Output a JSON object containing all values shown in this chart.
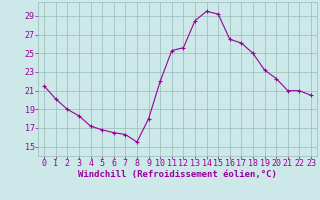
{
  "x": [
    0,
    1,
    2,
    3,
    4,
    5,
    6,
    7,
    8,
    9,
    10,
    11,
    12,
    13,
    14,
    15,
    16,
    17,
    18,
    19,
    20,
    21,
    22,
    23
  ],
  "y": [
    21.5,
    20.1,
    19.0,
    18.3,
    17.2,
    16.8,
    16.5,
    16.3,
    15.5,
    18.0,
    22.0,
    25.3,
    25.6,
    28.5,
    29.5,
    29.2,
    26.5,
    26.1,
    25.0,
    23.2,
    22.3,
    21.0,
    21.0,
    20.5
  ],
  "line_color": "#990099",
  "marker": "+",
  "marker_size": 3,
  "marker_lw": 0.8,
  "line_width": 0.8,
  "bg_color": "#cce8e8",
  "grid_color": "#99bbbb",
  "xlabel": "Windchill (Refroidissement éolien,°C)",
  "xlabel_color": "#990099",
  "xlabel_fontsize": 6.5,
  "tick_color": "#990099",
  "tick_fontsize": 6,
  "yticks": [
    15,
    17,
    19,
    21,
    23,
    25,
    27,
    29
  ],
  "xticks": [
    0,
    1,
    2,
    3,
    4,
    5,
    6,
    7,
    8,
    9,
    10,
    11,
    12,
    13,
    14,
    15,
    16,
    17,
    18,
    19,
    20,
    21,
    22,
    23
  ],
  "ylim": [
    14.0,
    30.5
  ],
  "xlim": [
    -0.5,
    23.5
  ]
}
